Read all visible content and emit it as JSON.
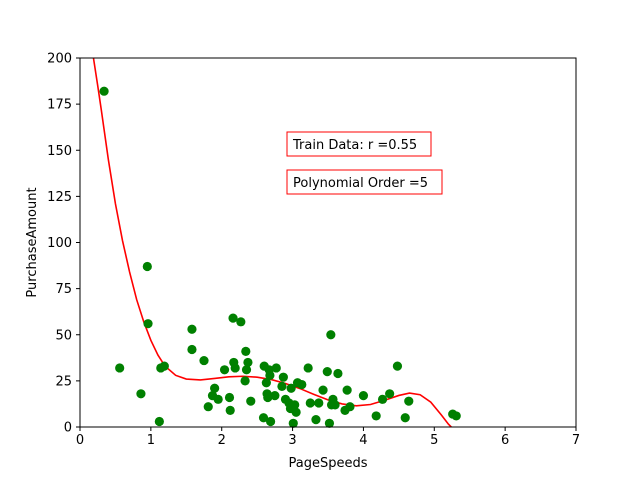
{
  "chart_data": {
    "type": "scatter",
    "xlabel": "PageSpeeds",
    "ylabel": "PurchaseAmount",
    "xlim": [
      0,
      7
    ],
    "ylim": [
      0,
      200
    ],
    "xticks": [
      "0",
      "1",
      "2",
      "3",
      "4",
      "5",
      "6",
      "7"
    ],
    "yticks": [
      "0",
      "25",
      "50",
      "75",
      "100",
      "125",
      "150",
      "175",
      "200"
    ],
    "grid": false,
    "annotations": [
      {
        "text": "Train Data: r =0.55",
        "x": 3.0,
        "y": 153
      },
      {
        "text": "Polynomial Order =5",
        "x": 3.0,
        "y": 132
      }
    ],
    "colors": {
      "points": "#008000",
      "fit": "#ff0000",
      "box": "#ff0000"
    },
    "points": [
      {
        "x": 0.34,
        "y": 182
      },
      {
        "x": 0.56,
        "y": 32
      },
      {
        "x": 0.86,
        "y": 18
      },
      {
        "x": 0.95,
        "y": 87
      },
      {
        "x": 0.96,
        "y": 56
      },
      {
        "x": 1.12,
        "y": 3
      },
      {
        "x": 1.14,
        "y": 32
      },
      {
        "x": 1.19,
        "y": 33
      },
      {
        "x": 1.58,
        "y": 53
      },
      {
        "x": 1.58,
        "y": 42
      },
      {
        "x": 1.75,
        "y": 36
      },
      {
        "x": 1.81,
        "y": 11
      },
      {
        "x": 1.87,
        "y": 17
      },
      {
        "x": 1.9,
        "y": 21
      },
      {
        "x": 1.95,
        "y": 15
      },
      {
        "x": 2.04,
        "y": 31
      },
      {
        "x": 2.11,
        "y": 16
      },
      {
        "x": 2.12,
        "y": 9
      },
      {
        "x": 2.16,
        "y": 59
      },
      {
        "x": 2.17,
        "y": 35
      },
      {
        "x": 2.19,
        "y": 32
      },
      {
        "x": 2.27,
        "y": 57
      },
      {
        "x": 2.33,
        "y": 25
      },
      {
        "x": 2.34,
        "y": 41
      },
      {
        "x": 2.35,
        "y": 31
      },
      {
        "x": 2.37,
        "y": 35
      },
      {
        "x": 2.41,
        "y": 14
      },
      {
        "x": 2.59,
        "y": 5
      },
      {
        "x": 2.6,
        "y": 33
      },
      {
        "x": 2.63,
        "y": 24
      },
      {
        "x": 2.64,
        "y": 18
      },
      {
        "x": 2.65,
        "y": 16
      },
      {
        "x": 2.67,
        "y": 31
      },
      {
        "x": 2.68,
        "y": 28
      },
      {
        "x": 2.69,
        "y": 3
      },
      {
        "x": 2.75,
        "y": 17
      },
      {
        "x": 2.77,
        "y": 32
      },
      {
        "x": 2.85,
        "y": 22
      },
      {
        "x": 2.87,
        "y": 27
      },
      {
        "x": 2.9,
        "y": 15
      },
      {
        "x": 2.95,
        "y": 13
      },
      {
        "x": 2.97,
        "y": 10
      },
      {
        "x": 2.98,
        "y": 21
      },
      {
        "x": 3.01,
        "y": 2
      },
      {
        "x": 3.03,
        "y": 12
      },
      {
        "x": 3.05,
        "y": 8
      },
      {
        "x": 3.07,
        "y": 24
      },
      {
        "x": 3.13,
        "y": 23
      },
      {
        "x": 3.22,
        "y": 32
      },
      {
        "x": 3.25,
        "y": 13
      },
      {
        "x": 3.33,
        "y": 4
      },
      {
        "x": 3.37,
        "y": 13
      },
      {
        "x": 3.43,
        "y": 20
      },
      {
        "x": 3.49,
        "y": 30
      },
      {
        "x": 3.52,
        "y": 2
      },
      {
        "x": 3.54,
        "y": 50
      },
      {
        "x": 3.55,
        "y": 12
      },
      {
        "x": 3.57,
        "y": 15
      },
      {
        "x": 3.6,
        "y": 12
      },
      {
        "x": 3.64,
        "y": 29
      },
      {
        "x": 3.74,
        "y": 9
      },
      {
        "x": 3.77,
        "y": 20
      },
      {
        "x": 3.81,
        "y": 11
      },
      {
        "x": 4.0,
        "y": 17
      },
      {
        "x": 4.18,
        "y": 6
      },
      {
        "x": 4.27,
        "y": 15
      },
      {
        "x": 4.37,
        "y": 18
      },
      {
        "x": 4.48,
        "y": 33
      },
      {
        "x": 4.59,
        "y": 5
      },
      {
        "x": 4.64,
        "y": 14
      },
      {
        "x": 5.26,
        "y": 7
      },
      {
        "x": 5.31,
        "y": 6
      }
    ],
    "fit_curve": [
      {
        "x": 0.19,
        "y": 200
      },
      {
        "x": 0.25,
        "y": 185
      },
      {
        "x": 0.3,
        "y": 172
      },
      {
        "x": 0.4,
        "y": 145
      },
      {
        "x": 0.5,
        "y": 121
      },
      {
        "x": 0.6,
        "y": 101
      },
      {
        "x": 0.7,
        "y": 84
      },
      {
        "x": 0.8,
        "y": 69
      },
      {
        "x": 0.9,
        "y": 57
      },
      {
        "x": 1.0,
        "y": 47
      },
      {
        "x": 1.1,
        "y": 39
      },
      {
        "x": 1.2,
        "y": 33
      },
      {
        "x": 1.35,
        "y": 28
      },
      {
        "x": 1.5,
        "y": 26
      },
      {
        "x": 1.7,
        "y": 25.5
      },
      {
        "x": 1.9,
        "y": 26.3
      },
      {
        "x": 2.1,
        "y": 27.2
      },
      {
        "x": 2.3,
        "y": 27.5
      },
      {
        "x": 2.5,
        "y": 27.0
      },
      {
        "x": 2.7,
        "y": 25.7
      },
      {
        "x": 2.9,
        "y": 23.6
      },
      {
        "x": 3.1,
        "y": 20.9
      },
      {
        "x": 3.3,
        "y": 17.7
      },
      {
        "x": 3.5,
        "y": 14.7
      },
      {
        "x": 3.7,
        "y": 12.5
      },
      {
        "x": 3.9,
        "y": 11.5
      },
      {
        "x": 4.1,
        "y": 12.2
      },
      {
        "x": 4.3,
        "y": 14.5
      },
      {
        "x": 4.5,
        "y": 17.1
      },
      {
        "x": 4.65,
        "y": 18.4
      },
      {
        "x": 4.8,
        "y": 17.5
      },
      {
        "x": 4.95,
        "y": 13.5
      },
      {
        "x": 5.1,
        "y": 6.5
      },
      {
        "x": 5.2,
        "y": 1.5
      },
      {
        "x": 5.24,
        "y": 0
      }
    ]
  }
}
